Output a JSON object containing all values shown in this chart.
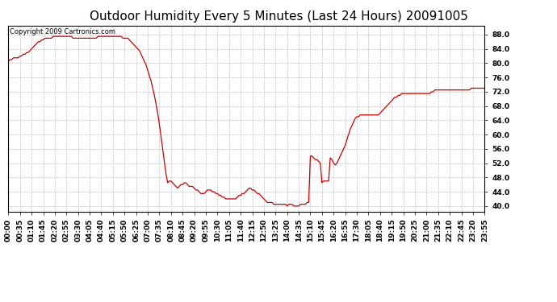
{
  "title": "Outdoor Humidity Every 5 Minutes (Last 24 Hours) 20091005",
  "copyright_text": "Copyright 2009 Cartronics.com",
  "line_color": "#cc0000",
  "background_color": "#ffffff",
  "grid_color": "#bbbbbb",
  "ylim": [
    38.5,
    90.5
  ],
  "yticks": [
    40.0,
    44.0,
    48.0,
    52.0,
    56.0,
    60.0,
    64.0,
    68.0,
    72.0,
    76.0,
    80.0,
    84.0,
    88.0
  ],
  "xlabel": "",
  "ylabel": "",
  "title_fontsize": 11,
  "tick_fontsize": 6.5,
  "copyright_fontsize": 6,
  "humidity_profile": {
    "00:00": 80.5,
    "00:05": 81.0,
    "00:10": 81.0,
    "00:15": 81.5,
    "00:20": 81.5,
    "00:25": 81.5,
    "00:30": 81.5,
    "00:35": 82.0,
    "00:40": 82.0,
    "00:45": 82.5,
    "00:50": 82.5,
    "00:55": 83.0,
    "01:00": 83.0,
    "01:05": 83.5,
    "01:10": 84.0,
    "01:15": 84.5,
    "01:20": 85.0,
    "01:25": 85.5,
    "01:30": 86.0,
    "01:35": 86.0,
    "01:40": 86.5,
    "01:45": 86.5,
    "01:50": 87.0,
    "01:55": 87.0,
    "02:00": 87.0,
    "02:05": 87.0,
    "02:10": 87.0,
    "02:15": 87.5,
    "02:20": 87.5,
    "02:25": 87.5,
    "02:30": 87.5,
    "02:35": 87.5,
    "02:40": 87.5,
    "02:45": 87.5,
    "02:50": 87.5,
    "02:55": 87.5,
    "03:00": 87.5,
    "03:05": 87.5,
    "03:10": 87.5,
    "03:15": 87.0,
    "03:20": 87.0,
    "03:25": 87.0,
    "03:30": 87.0,
    "03:35": 87.0,
    "03:40": 87.0,
    "03:45": 87.0,
    "03:50": 87.0,
    "03:55": 87.0,
    "04:00": 87.0,
    "04:05": 87.0,
    "04:10": 87.0,
    "04:15": 87.0,
    "04:20": 87.0,
    "04:25": 87.0,
    "04:30": 87.5,
    "04:35": 87.5,
    "04:40": 87.5,
    "04:45": 87.5,
    "04:50": 87.5,
    "04:55": 87.5,
    "05:00": 87.5,
    "05:05": 87.5,
    "05:10": 87.5,
    "05:15": 87.5,
    "05:20": 87.5,
    "05:25": 87.5,
    "05:30": 87.5,
    "05:35": 87.5,
    "05:40": 87.5,
    "05:45": 87.0,
    "05:50": 87.0,
    "05:55": 87.0,
    "06:00": 87.0,
    "06:05": 86.5,
    "06:10": 86.0,
    "06:15": 85.5,
    "06:20": 85.0,
    "06:25": 84.5,
    "06:30": 84.0,
    "06:35": 83.5,
    "06:40": 82.5,
    "06:45": 81.5,
    "06:50": 80.5,
    "06:55": 79.5,
    "07:00": 78.0,
    "07:05": 76.5,
    "07:10": 75.0,
    "07:15": 73.0,
    "07:20": 71.0,
    "07:25": 68.5,
    "07:30": 66.0,
    "07:35": 63.0,
    "07:40": 59.5,
    "07:45": 56.0,
    "07:50": 52.5,
    "07:55": 49.0,
    "08:00": 46.5,
    "08:05": 47.0,
    "08:10": 47.0,
    "08:15": 46.5,
    "08:20": 46.0,
    "08:25": 45.5,
    "08:30": 45.0,
    "08:35": 45.5,
    "08:40": 46.0,
    "08:45": 46.0,
    "08:50": 46.5,
    "08:55": 46.5,
    "09:00": 46.0,
    "09:05": 45.5,
    "09:10": 45.5,
    "09:15": 45.5,
    "09:20": 45.0,
    "09:25": 44.5,
    "09:30": 44.5,
    "09:35": 44.0,
    "09:40": 43.5,
    "09:45": 43.5,
    "09:50": 43.5,
    "09:55": 44.0,
    "10:00": 44.5,
    "10:05": 44.5,
    "10:10": 44.5,
    "10:15": 44.0,
    "10:20": 44.0,
    "10:25": 43.5,
    "10:30": 43.5,
    "10:35": 43.0,
    "10:40": 43.0,
    "10:45": 42.5,
    "10:50": 42.5,
    "10:55": 42.0,
    "11:00": 42.0,
    "11:05": 42.0,
    "11:10": 42.0,
    "11:15": 42.0,
    "11:20": 42.0,
    "11:25": 42.0,
    "11:30": 42.5,
    "11:35": 43.0,
    "11:40": 43.0,
    "11:45": 43.5,
    "11:50": 43.5,
    "11:55": 44.0,
    "12:00": 44.5,
    "12:05": 45.0,
    "12:10": 45.0,
    "12:15": 44.5,
    "12:20": 44.5,
    "12:25": 44.0,
    "12:30": 43.5,
    "12:35": 43.5,
    "12:40": 43.0,
    "12:45": 42.5,
    "12:50": 42.0,
    "12:55": 41.5,
    "13:00": 41.0,
    "13:05": 41.0,
    "13:10": 41.0,
    "13:15": 41.0,
    "13:20": 40.5,
    "13:25": 40.5,
    "13:30": 40.5,
    "13:35": 40.5,
    "13:40": 40.5,
    "13:45": 40.5,
    "13:50": 40.5,
    "13:55": 40.5,
    "14:00": 40.0,
    "14:05": 40.5,
    "14:10": 40.5,
    "14:15": 40.5,
    "14:20": 40.0,
    "14:25": 40.0,
    "14:30": 40.0,
    "14:35": 40.0,
    "14:40": 40.5,
    "14:45": 40.5,
    "14:50": 40.5,
    "14:55": 40.5,
    "15:00": 41.0,
    "15:05": 41.0,
    "15:10": 54.0,
    "15:15": 54.0,
    "15:20": 53.5,
    "15:25": 53.0,
    "15:30": 53.0,
    "15:35": 52.5,
    "15:40": 52.0,
    "15:45": 46.5,
    "15:50": 47.0,
    "15:55": 47.0,
    "16:00": 47.0,
    "16:05": 47.0,
    "16:10": 53.5,
    "16:15": 53.0,
    "16:20": 52.0,
    "16:25": 51.5,
    "16:30": 52.0,
    "16:35": 53.0,
    "16:40": 54.0,
    "16:45": 55.0,
    "16:50": 56.0,
    "16:55": 57.0,
    "17:00": 58.5,
    "17:05": 60.0,
    "17:10": 61.5,
    "17:15": 62.5,
    "17:20": 63.5,
    "17:25": 64.5,
    "17:30": 65.0,
    "17:35": 65.0,
    "17:40": 65.5,
    "17:45": 65.5,
    "17:50": 65.5,
    "17:55": 65.5,
    "18:00": 65.5,
    "18:05": 65.5,
    "18:10": 65.5,
    "18:15": 65.5,
    "18:20": 65.5,
    "18:25": 65.5,
    "18:30": 65.5,
    "18:35": 65.5,
    "18:40": 66.0,
    "18:45": 66.5,
    "18:50": 67.0,
    "18:55": 67.5,
    "19:00": 68.0,
    "19:05": 68.5,
    "19:10": 69.0,
    "19:15": 69.5,
    "19:20": 70.0,
    "19:25": 70.5,
    "19:30": 70.5,
    "19:35": 71.0,
    "19:40": 71.0,
    "19:45": 71.5,
    "19:50": 71.5,
    "19:55": 71.5,
    "20:00": 71.5,
    "20:05": 71.5,
    "20:10": 71.5,
    "20:15": 71.5,
    "20:20": 71.5,
    "20:25": 71.5,
    "20:30": 71.5,
    "20:35": 71.5,
    "20:40": 71.5,
    "20:45": 71.5,
    "20:50": 71.5,
    "20:55": 71.5,
    "21:00": 71.5,
    "21:05": 71.5,
    "21:10": 71.5,
    "21:15": 72.0,
    "21:20": 72.0,
    "21:25": 72.5,
    "21:30": 72.5,
    "21:35": 72.5,
    "21:40": 72.5,
    "21:45": 72.5,
    "21:50": 72.5,
    "21:55": 72.5,
    "22:00": 72.5,
    "22:05": 72.5,
    "22:10": 72.5,
    "22:15": 72.5,
    "22:20": 72.5,
    "22:25": 72.5,
    "22:30": 72.5,
    "22:35": 72.5,
    "22:40": 72.5,
    "22:45": 72.5,
    "22:50": 72.5,
    "22:55": 72.5,
    "23:00": 72.5,
    "23:05": 72.5,
    "23:10": 72.5,
    "23:15": 73.0,
    "23:20": 73.0,
    "23:25": 73.0,
    "23:30": 73.0,
    "23:35": 73.0,
    "23:40": 73.0,
    "23:45": 73.0,
    "23:50": 73.0,
    "23:55": 73.0
  },
  "xtick_labels_show": [
    "00:00",
    "00:35",
    "01:10",
    "01:45",
    "02:20",
    "02:55",
    "03:30",
    "04:05",
    "04:40",
    "05:15",
    "05:50",
    "06:25",
    "07:00",
    "07:35",
    "08:10",
    "08:45",
    "09:20",
    "09:55",
    "10:30",
    "11:05",
    "11:40",
    "12:15",
    "12:50",
    "13:25",
    "14:00",
    "14:35",
    "15:10",
    "15:45",
    "16:20",
    "16:55",
    "17:30",
    "18:05",
    "18:40",
    "19:15",
    "19:50",
    "20:25",
    "21:00",
    "21:35",
    "22:10",
    "22:45",
    "23:20",
    "23:55"
  ]
}
